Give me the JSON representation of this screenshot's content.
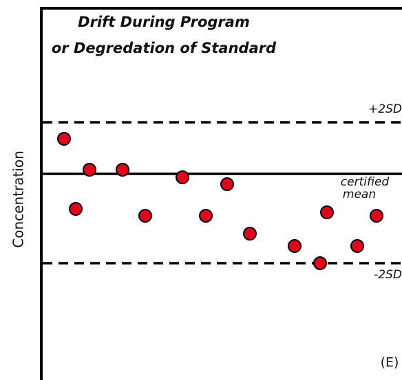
{
  "chart_data": {
    "type": "scatter",
    "title": "Drift During Program",
    "subtitle": "or Degredation of Standard",
    "y_label": "Concentration",
    "annotation": "(E)",
    "xlim": [
      58,
      584
    ],
    "ylim": [
      0,
      541
    ],
    "reference_lines": [
      {
        "value": 375,
        "label": [
          "+2SD"
        ],
        "style": "dashed"
      },
      {
        "value": 300,
        "label": [
          "certified",
          "mean"
        ],
        "style": "solid"
      },
      {
        "value": 170,
        "label": [
          "-2SD"
        ],
        "style": "dashed"
      }
    ],
    "series": [
      {
        "color": "#e3001b",
        "x": [
          93,
          110,
          130,
          178,
          211,
          265,
          299,
          330,
          363,
          428,
          465,
          475,
          519,
          547
        ],
        "values": [
          351,
          249,
          306,
          306,
          239,
          295,
          239,
          285,
          213,
          195,
          170,
          244,
          195,
          239
        ]
      }
    ]
  }
}
